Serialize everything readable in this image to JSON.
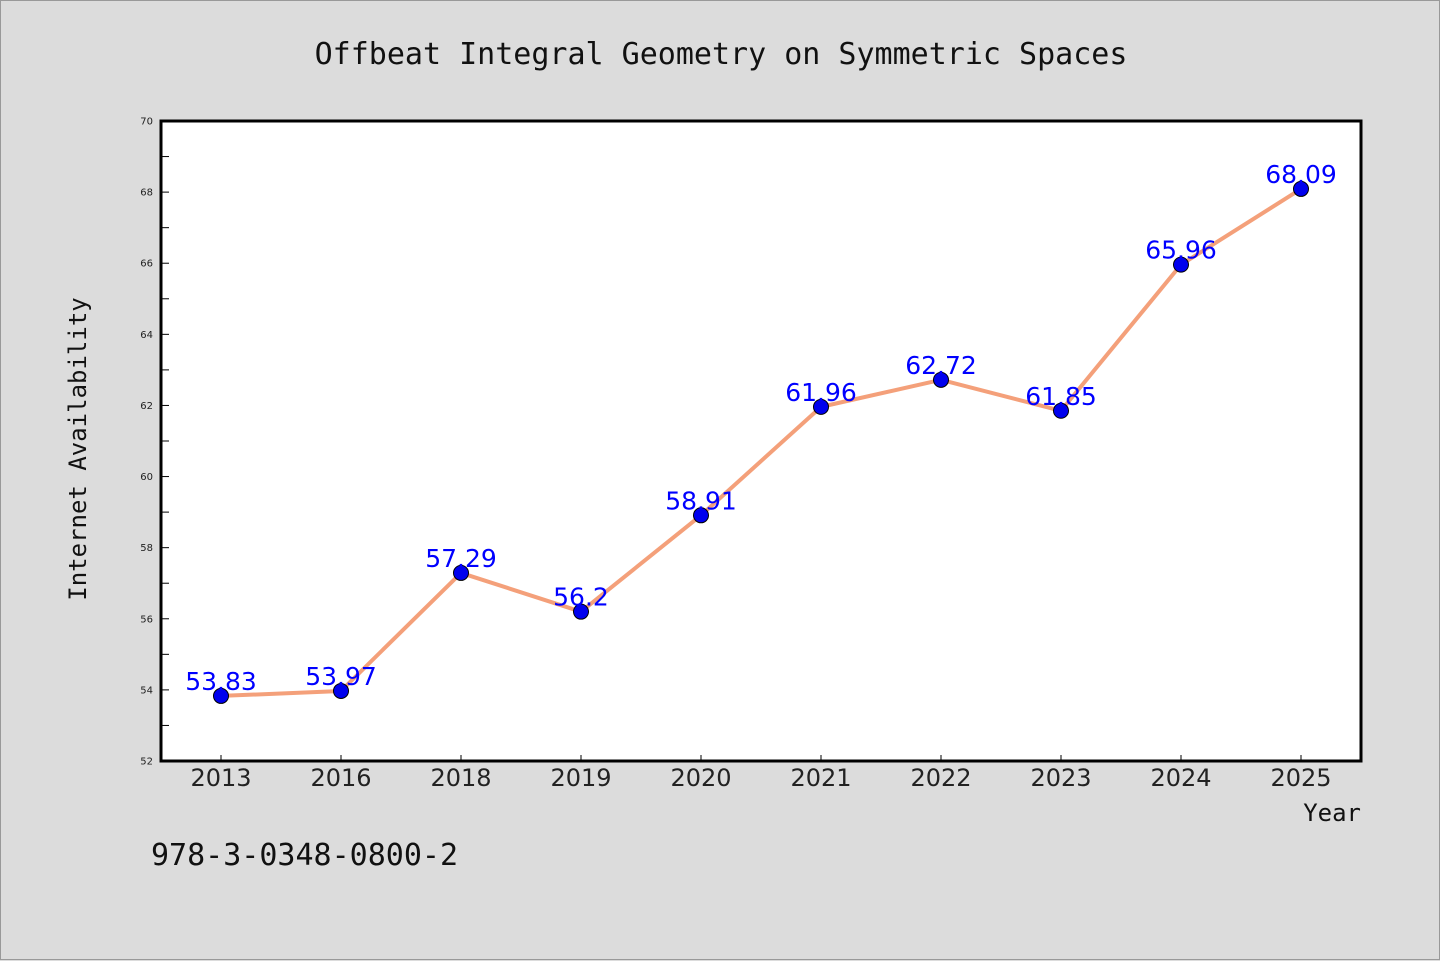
{
  "chart_data": {
    "type": "line",
    "title": "Offbeat Integral Geometry on Symmetric Spaces",
    "xlabel": "Year",
    "ylabel": "Internet Availability",
    "categories": [
      "2013",
      "2016",
      "2018",
      "2019",
      "2020",
      "2021",
      "2022",
      "2023",
      "2024",
      "2025"
    ],
    "series": [
      {
        "values": [
          53.83,
          53.97,
          57.29,
          56.2,
          58.91,
          61.96,
          62.72,
          61.85,
          65.96,
          68.09
        ],
        "line_color": "#f4a07a",
        "marker_color": "#0000ee"
      }
    ],
    "data_labels": [
      "53.83",
      "53.97",
      "57.29",
      "56.2",
      "58.91",
      "61.96",
      "62.72",
      "61.85",
      "65.96",
      "68.09"
    ],
    "ylim": [
      52,
      70
    ],
    "yticks": [
      "52",
      "54",
      "56",
      "58",
      "60",
      "62",
      "64",
      "66",
      "68",
      "70"
    ],
    "grid": false,
    "legend": "none",
    "label_color": "#0000ff"
  },
  "footer_text": "978-3-0348-0800-2",
  "colors": {
    "background": "#dcdcdc",
    "plot_background": "#ffffff"
  }
}
